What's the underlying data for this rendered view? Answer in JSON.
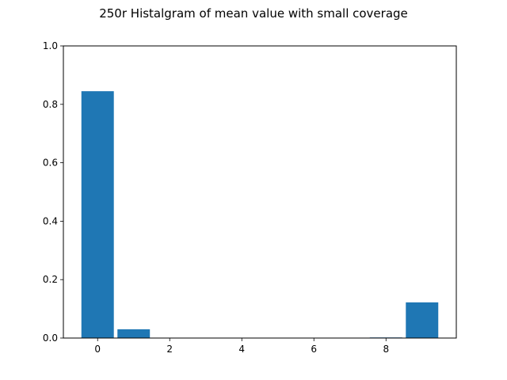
{
  "chart_data": {
    "type": "bar",
    "title": "250r Histalgram of mean value with small coverage",
    "xlabel": "",
    "ylabel": "",
    "x": [
      0,
      1,
      2,
      3,
      4,
      5,
      6,
      7,
      8,
      9
    ],
    "values": [
      0.845,
      0.03,
      0.0,
      0.0,
      0.0,
      0.0,
      0.0,
      0.0,
      0.002,
      0.122
    ],
    "bar_width": 0.9,
    "xlim": [
      -0.95,
      9.95
    ],
    "ylim": [
      0,
      1.0
    ],
    "xticks": [
      0,
      2,
      4,
      6,
      8
    ],
    "yticks": [
      0.0,
      0.2,
      0.4,
      0.6,
      0.8,
      1.0
    ],
    "bar_color": "#1f77b4",
    "grid": false,
    "legend": "none"
  }
}
